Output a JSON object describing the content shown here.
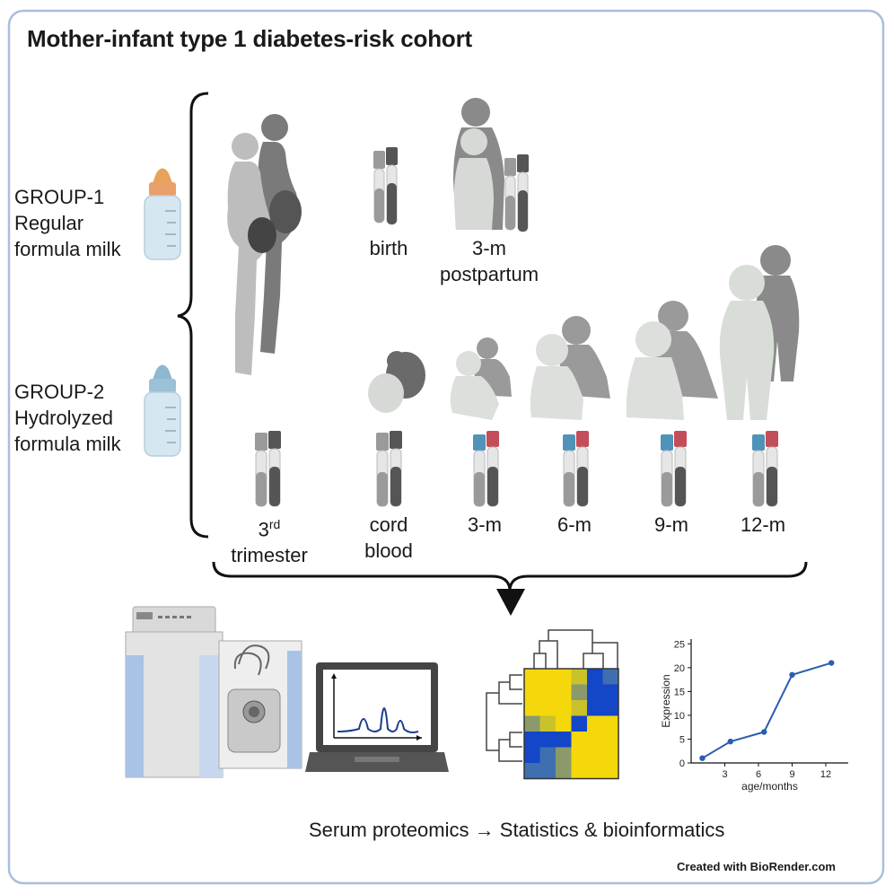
{
  "title": "Mother-infant type 1 diabetes-risk cohort",
  "groups": [
    {
      "label": "GROUP-1",
      "line2": "Regular",
      "line3": "formula milk",
      "cap_color": "#e8a25a"
    },
    {
      "label": "GROUP-2",
      "line2": "Hydrolyzed",
      "line3": "formula milk",
      "cap_color": "#8fb7cf"
    }
  ],
  "timepoints_top": [
    {
      "label": "birth"
    },
    {
      "label": "3-m",
      "line2": "postpartum"
    }
  ],
  "timepoints_bottom": [
    {
      "label_main": "3",
      "label_sup": "rd",
      "line2": "trimester"
    },
    {
      "label": "cord",
      "line2": "blood"
    },
    {
      "label": "3-m"
    },
    {
      "label": "6-m"
    },
    {
      "label": "9-m"
    },
    {
      "label": "12-m"
    }
  ],
  "tube_colors": {
    "gray": "#9a9a9a",
    "dark": "#555555",
    "blue": "#4f93b8",
    "red": "#c44d5a"
  },
  "footer": {
    "left": "Serum proteomics",
    "arrow": "→",
    "right": "Statistics & bioinformatics"
  },
  "credit": "Created with BioRender.com",
  "mini_chart": {
    "chart_data": {
      "type": "line",
      "x": [
        1,
        3.5,
        6.5,
        9,
        12.5
      ],
      "y": [
        1,
        4.5,
        6.5,
        18.5,
        21
      ],
      "xticks": [
        3,
        6,
        9,
        12
      ],
      "yticks": [
        0,
        5,
        10,
        15,
        20,
        25
      ],
      "xlabel": "age/months",
      "ylabel": "Expression",
      "xlim": [
        0,
        14
      ],
      "ylim": [
        0,
        26
      ],
      "color": "#2a5db0"
    }
  },
  "heatmap": {
    "colors": {
      "Y": "#f5d80c",
      "O": "#c9c22a",
      "G": "#8a9a6a",
      "D": "#3f6fb0",
      "B": "#1446c8"
    },
    "rows": [
      "YYYOBD",
      "YYYGBB",
      "YYYOBB",
      "GOYBYY",
      "BBBYYY",
      "BDGYYY",
      "DDGYYY"
    ]
  }
}
